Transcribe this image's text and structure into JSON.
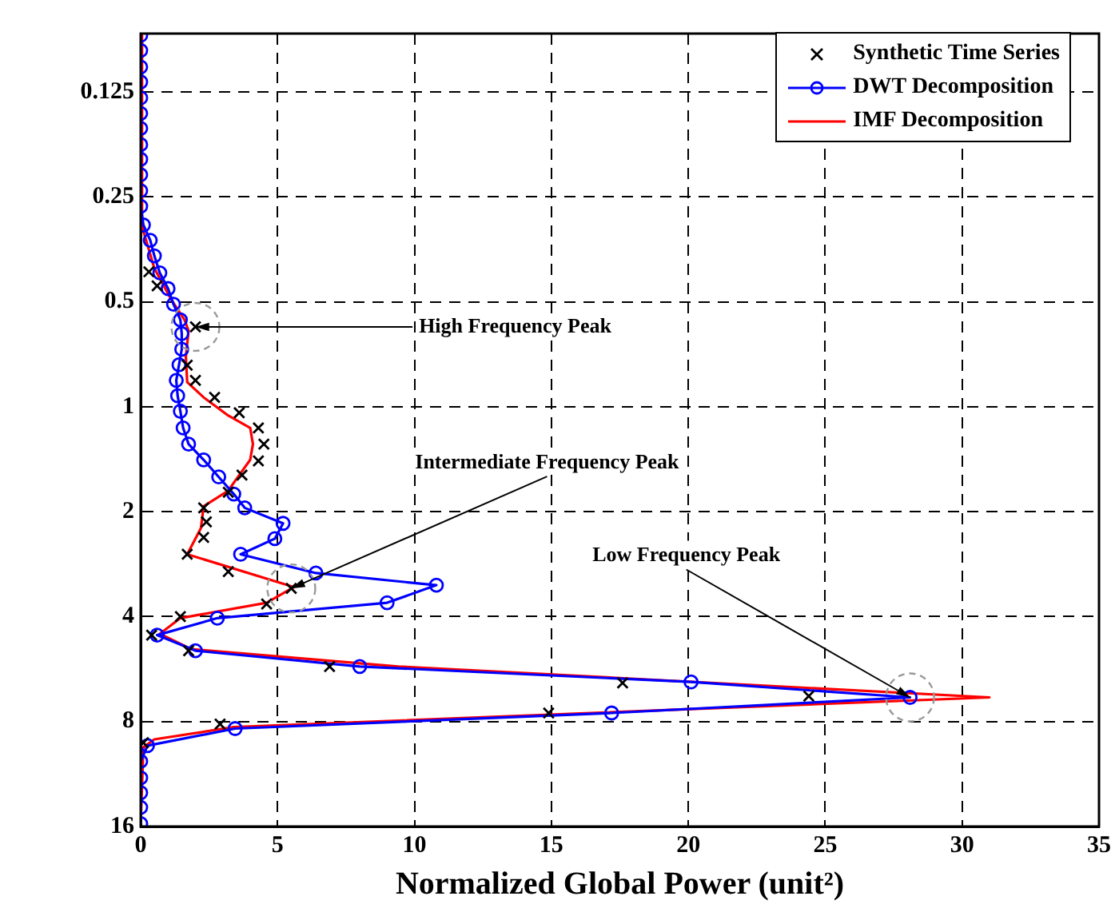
{
  "chart_data": {
    "type": "line",
    "xlabel": "Normalized Global Power (unit²)",
    "xlim": [
      0,
      35
    ],
    "xticks": [
      0,
      5,
      10,
      15,
      20,
      25,
      30,
      35
    ],
    "ylim": [
      16,
      0.085
    ],
    "yticks": [
      0.125,
      0.25,
      0.5,
      1,
      2,
      4,
      8,
      16
    ],
    "log": "y",
    "grid": true,
    "legend": "top right",
    "series": [
      {
        "name": "Synthetic Time Series",
        "type": "scatter",
        "marker": "cross",
        "color": "#000000",
        "x": [
          0.3,
          0.6,
          2.0,
          1.7,
          2.0,
          2.7,
          3.6,
          4.3,
          4.5,
          4.3,
          3.7,
          3.2,
          2.3,
          2.4,
          2.3,
          1.7,
          3.2,
          5.5,
          4.6,
          1.45,
          0.4,
          1.75,
          6.9,
          17.6,
          24.4,
          14.9,
          2.9,
          0.1
        ],
        "values": [
          0.41,
          0.45,
          0.59,
          0.76,
          0.84,
          0.94,
          1.04,
          1.15,
          1.28,
          1.43,
          1.57,
          1.76,
          1.95,
          2.14,
          2.37,
          2.65,
          2.97,
          3.32,
          3.68,
          4.0,
          4.52,
          5.01,
          5.56,
          6.2,
          6.76,
          7.56,
          8.13,
          9.2
        ]
      },
      {
        "name": "DWT Decomposition",
        "type": "line",
        "marker": "circle",
        "color": "#0000ff",
        "x": [
          0,
          0,
          0,
          0,
          0,
          0,
          0,
          0,
          0,
          0,
          0,
          0,
          0.1,
          0.35,
          0.5,
          0.7,
          1.0,
          1.2,
          1.45,
          1.5,
          1.5,
          1.4,
          1.3,
          1.35,
          1.45,
          1.55,
          1.75,
          2.3,
          2.85,
          3.4,
          3.8,
          5.2,
          4.9,
          3.65,
          6.4,
          10.8,
          9.0,
          2.8,
          0.6,
          2.0,
          8.0,
          20.1,
          28.1,
          17.2,
          3.45,
          0.25,
          0,
          0,
          0,
          0,
          0
        ],
        "values": [
          0.086,
          0.095,
          0.106,
          0.117,
          0.13,
          0.144,
          0.159,
          0.177,
          0.195,
          0.216,
          0.24,
          0.266,
          0.301,
          0.333,
          0.369,
          0.413,
          0.458,
          0.508,
          0.563,
          0.617,
          0.684,
          0.758,
          0.84,
          0.93,
          1.03,
          1.15,
          1.28,
          1.42,
          1.59,
          1.78,
          1.95,
          2.16,
          2.39,
          2.65,
          3.0,
          3.25,
          3.65,
          4.04,
          4.52,
          5.01,
          5.56,
          6.16,
          6.82,
          7.56,
          8.38,
          9.38,
          10.4,
          11.6,
          12.8,
          14.1,
          15.7
        ]
      },
      {
        "name": "IMF Decomposition",
        "type": "line",
        "marker": "none",
        "color": "#ff0000",
        "x": [
          0,
          0.05,
          0.5,
          1.1,
          1.6,
          1.75,
          1.65,
          1.7,
          2.3,
          3.2,
          4.0,
          4.1,
          4.0,
          3.6,
          3.2,
          2.3,
          2.2,
          1.7,
          5.6,
          4.6,
          1.45,
          0.7,
          1.85,
          9.4,
          31.0,
          9.4,
          3.4,
          0.5,
          0.1,
          0
        ],
        "values": [
          0.086,
          0.304,
          0.401,
          0.49,
          0.563,
          0.605,
          0.72,
          0.85,
          0.94,
          1.06,
          1.15,
          1.28,
          1.42,
          1.57,
          1.74,
          1.93,
          2.23,
          2.65,
          3.29,
          3.65,
          4.04,
          4.48,
          4.96,
          5.56,
          6.82,
          7.95,
          8.3,
          9.0,
          9.48,
          15.7
        ]
      }
    ],
    "annotations": [
      {
        "text": "High Frequency Peak",
        "x": 2.0,
        "y": 0.59
      },
      {
        "text": "Intermediate Frequency Peak",
        "x": 5.5,
        "y": 3.32
      },
      {
        "text": "Low Frequency Peak",
        "x": 28.1,
        "y": 6.82
      }
    ]
  }
}
